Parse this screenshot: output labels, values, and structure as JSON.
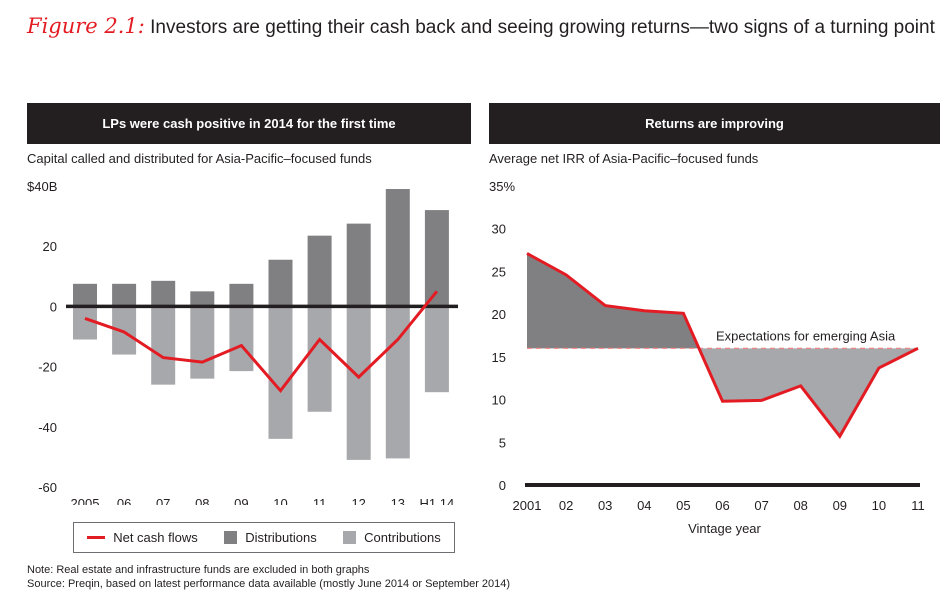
{
  "figure": {
    "label": "Figure 2.1:",
    "title": "Investors are getting their cash back and seeing growing returns—two signs of a turning point"
  },
  "colors": {
    "accent_red": "#e31b23",
    "distributions": "#808083",
    "contributions": "#a7a8ab",
    "header_bg": "#231f20",
    "text": "#231f20"
  },
  "left_panel": {
    "header": "LPs were cash positive in 2014 for the first time",
    "subtitle": "Capital called and distributed for Asia-Pacific–focused funds",
    "legend": [
      {
        "label": "Net cash flows",
        "type": "line"
      },
      {
        "label": "Distributions",
        "type": "box"
      },
      {
        "label": "Contributions",
        "type": "box"
      }
    ]
  },
  "right_panel": {
    "header": "Returns are improving",
    "subtitle": "Average net IRR of Asia-Pacific–focused funds",
    "annotation": "Expectations for emerging Asia"
  },
  "notes": {
    "note": "Note: Real estate and infrastructure funds are excluded in both graphs",
    "source": "Source: Preqin, based on latest performance data available (mostly June 2014 or September 2014)"
  },
  "chart_data": [
    {
      "type": "bar",
      "title": "LPs were cash positive in 2014 for the first time",
      "subtitle": "Capital called and distributed for Asia-Pacific–focused funds",
      "xlabel": "",
      "ylabel": "",
      "categories": [
        "2005",
        "06",
        "07",
        "08",
        "09",
        "10",
        "11",
        "12",
        "13",
        "H1 14"
      ],
      "ylim": [
        -60,
        40
      ],
      "yticks": [
        40,
        20,
        0,
        -20,
        -40,
        -60
      ],
      "ytick_labels": [
        "$40B",
        "20",
        "0",
        "-20",
        "-40",
        "-60"
      ],
      "grid": false,
      "legend_position": "bottom",
      "series": [
        {
          "name": "Distributions",
          "kind": "bar",
          "values": [
            7.5,
            7.5,
            8.5,
            5,
            7.5,
            15.5,
            23.5,
            27.5,
            39,
            32
          ]
        },
        {
          "name": "Contributions",
          "kind": "bar",
          "values": [
            -11,
            -16,
            -26,
            -24,
            -21.5,
            -44,
            -35,
            -51,
            -50.5,
            -28.5
          ]
        },
        {
          "name": "Net cash flows",
          "kind": "line",
          "values": [
            -4,
            -8.5,
            -17,
            -18.5,
            -13,
            -28,
            -11,
            -23.5,
            -11,
            5
          ]
        }
      ]
    },
    {
      "type": "area",
      "title": "Returns are improving",
      "subtitle": "Average net IRR of Asia-Pacific–focused funds",
      "xlabel": "Vintage year",
      "ylabel": "",
      "categories": [
        "2001",
        "02",
        "03",
        "04",
        "05",
        "06",
        "07",
        "08",
        "09",
        "10",
        "11"
      ],
      "ylim": [
        0,
        35
      ],
      "yticks": [
        35,
        30,
        25,
        20,
        15,
        10,
        5,
        0
      ],
      "ytick_labels": [
        "35%",
        "30",
        "25",
        "20",
        "15",
        "10",
        "5",
        "0"
      ],
      "grid": false,
      "series": [
        {
          "name": "Average net IRR",
          "values": [
            27.1,
            24.6,
            21,
            20.4,
            20.1,
            9.8,
            9.9,
            11.6,
            5.7,
            13.7,
            16
          ]
        }
      ],
      "reference_line": {
        "label": "Expectations for emerging Asia",
        "value": 16
      }
    }
  ]
}
